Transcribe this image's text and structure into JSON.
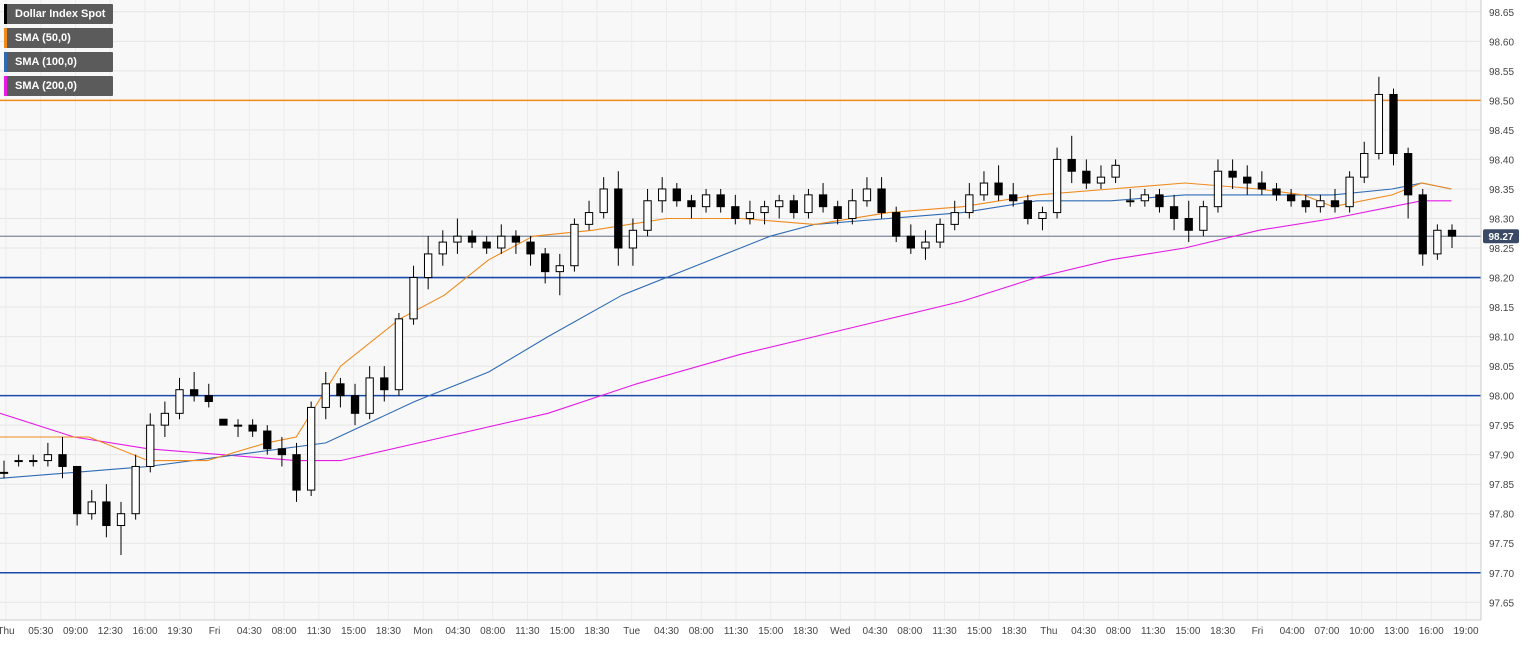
{
  "chart_data": {
    "type": "candlestick",
    "title": "Dollar Index Spot",
    "legend": [
      {
        "label": "Dollar Index Spot",
        "color": "#000000"
      },
      {
        "label": "SMA (50,0)",
        "color": "#ef8a1d"
      },
      {
        "label": "SMA (100,0)",
        "color": "#2f6bb3"
      },
      {
        "label": "SMA (200,0)",
        "color": "#e51be5"
      }
    ],
    "legend_position": "top-left",
    "grid": true,
    "ylim": [
      97.62,
      98.67
    ],
    "y_ticks": [
      "98.65",
      "98.60",
      "98.55",
      "98.50",
      "98.45",
      "98.40",
      "98.35",
      "98.30",
      "98.25",
      "98.20",
      "98.15",
      "98.10",
      "98.05",
      "98.00",
      "97.95",
      "97.90",
      "97.85",
      "97.80",
      "97.75",
      "97.70",
      "97.65"
    ],
    "x_ticks": [
      "Thu",
      "05:30",
      "09:00",
      "12:30",
      "16:00",
      "19:30",
      "Fri",
      "04:30",
      "08:00",
      "11:30",
      "15:00",
      "18:30",
      "Mon",
      "04:30",
      "08:00",
      "11:30",
      "15:00",
      "18:30",
      "Tue",
      "04:30",
      "08:00",
      "11:30",
      "15:00",
      "18:30",
      "Wed",
      "04:30",
      "08:00",
      "11:30",
      "15:00",
      "18:30",
      "Thu",
      "04:30",
      "08:00",
      "11:30",
      "15:00",
      "18:30",
      "Fri",
      "04:00",
      "07:00",
      "10:00",
      "13:00",
      "16:00",
      "19:00"
    ],
    "horizontal_levels": [
      {
        "value": 98.5,
        "color": "#ef8a1d"
      },
      {
        "value": 98.2,
        "color": "#1a4aa8"
      },
      {
        "value": 98.0,
        "color": "#1a4aa8"
      },
      {
        "value": 97.7,
        "color": "#1a4aa8"
      }
    ],
    "last_price": {
      "label": "98.27",
      "value": 98.27
    },
    "sma_50": [
      [
        0,
        97.93
      ],
      [
        0.06,
        97.93
      ],
      [
        0.1,
        97.89
      ],
      [
        0.14,
        97.89
      ],
      [
        0.18,
        97.92
      ],
      [
        0.2,
        97.93
      ],
      [
        0.23,
        98.05
      ],
      [
        0.27,
        98.13
      ],
      [
        0.3,
        98.17
      ],
      [
        0.33,
        98.23
      ],
      [
        0.36,
        98.27
      ],
      [
        0.4,
        98.28
      ],
      [
        0.45,
        98.3
      ],
      [
        0.5,
        98.3
      ],
      [
        0.55,
        98.29
      ],
      [
        0.6,
        98.31
      ],
      [
        0.65,
        98.32
      ],
      [
        0.7,
        98.34
      ],
      [
        0.75,
        98.35
      ],
      [
        0.8,
        98.36
      ],
      [
        0.85,
        98.35
      ],
      [
        0.88,
        98.34
      ],
      [
        0.9,
        98.32
      ],
      [
        0.94,
        98.34
      ],
      [
        0.96,
        98.36
      ],
      [
        0.98,
        98.35
      ]
    ],
    "sma_100": [
      [
        0,
        97.86
      ],
      [
        0.05,
        97.87
      ],
      [
        0.1,
        97.88
      ],
      [
        0.16,
        97.9
      ],
      [
        0.22,
        97.92
      ],
      [
        0.28,
        97.99
      ],
      [
        0.33,
        98.04
      ],
      [
        0.37,
        98.1
      ],
      [
        0.42,
        98.17
      ],
      [
        0.47,
        98.22
      ],
      [
        0.52,
        98.27
      ],
      [
        0.55,
        98.29
      ],
      [
        0.6,
        98.3
      ],
      [
        0.65,
        98.31
      ],
      [
        0.7,
        98.33
      ],
      [
        0.75,
        98.33
      ],
      [
        0.8,
        98.34
      ],
      [
        0.85,
        98.34
      ],
      [
        0.88,
        98.34
      ],
      [
        0.9,
        98.34
      ],
      [
        0.94,
        98.35
      ],
      [
        0.96,
        98.36
      ],
      [
        0.98,
        98.35
      ]
    ],
    "sma_200": [
      [
        0,
        97.97
      ],
      [
        0.05,
        97.93
      ],
      [
        0.1,
        97.91
      ],
      [
        0.15,
        97.9
      ],
      [
        0.2,
        97.89
      ],
      [
        0.23,
        97.89
      ],
      [
        0.3,
        97.93
      ],
      [
        0.37,
        97.97
      ],
      [
        0.43,
        98.02
      ],
      [
        0.5,
        98.07
      ],
      [
        0.55,
        98.1
      ],
      [
        0.6,
        98.13
      ],
      [
        0.65,
        98.16
      ],
      [
        0.7,
        98.2
      ],
      [
        0.75,
        98.23
      ],
      [
        0.8,
        98.25
      ],
      [
        0.85,
        98.28
      ],
      [
        0.9,
        98.3
      ],
      [
        0.94,
        98.32
      ],
      [
        0.96,
        98.33
      ],
      [
        0.98,
        98.33
      ]
    ],
    "candles": [
      [
        97.87,
        97.89,
        97.86,
        97.87
      ],
      [
        97.89,
        97.9,
        97.88,
        97.89
      ],
      [
        97.89,
        97.9,
        97.88,
        97.89
      ],
      [
        97.89,
        97.92,
        97.88,
        97.9
      ],
      [
        97.9,
        97.93,
        97.86,
        97.88
      ],
      [
        97.88,
        97.88,
        97.78,
        97.8
      ],
      [
        97.8,
        97.84,
        97.79,
        97.82
      ],
      [
        97.82,
        97.85,
        97.76,
        97.78
      ],
      [
        97.78,
        97.82,
        97.73,
        97.8
      ],
      [
        97.8,
        97.9,
        97.79,
        97.88
      ],
      [
        97.88,
        97.97,
        97.87,
        97.95
      ],
      [
        97.95,
        97.99,
        97.93,
        97.97
      ],
      [
        97.97,
        98.03,
        97.96,
        98.01
      ],
      [
        98.01,
        98.04,
        97.99,
        98.0
      ],
      [
        98.0,
        98.02,
        97.98,
        97.99
      ],
      [
        97.96,
        97.96,
        97.95,
        97.95
      ],
      [
        97.95,
        97.96,
        97.93,
        97.95
      ],
      [
        97.95,
        97.96,
        97.93,
        97.94
      ],
      [
        97.94,
        97.95,
        97.9,
        97.91
      ],
      [
        97.91,
        97.93,
        97.88,
        97.9
      ],
      [
        97.9,
        97.92,
        97.82,
        97.84
      ],
      [
        97.84,
        97.99,
        97.83,
        97.98
      ],
      [
        97.98,
        98.04,
        97.96,
        98.02
      ],
      [
        98.02,
        98.03,
        97.98,
        98.0
      ],
      [
        98.0,
        98.02,
        97.95,
        97.97
      ],
      [
        97.97,
        98.05,
        97.96,
        98.03
      ],
      [
        98.03,
        98.05,
        97.99,
        98.01
      ],
      [
        98.01,
        98.14,
        98.0,
        98.13
      ],
      [
        98.13,
        98.22,
        98.12,
        98.2
      ],
      [
        98.2,
        98.27,
        98.18,
        98.24
      ],
      [
        98.24,
        98.28,
        98.22,
        98.26
      ],
      [
        98.26,
        98.3,
        98.24,
        98.27
      ],
      [
        98.27,
        98.28,
        98.25,
        98.26
      ],
      [
        98.26,
        98.27,
        98.24,
        98.25
      ],
      [
        98.25,
        98.29,
        98.24,
        98.27
      ],
      [
        98.27,
        98.28,
        98.24,
        98.26
      ],
      [
        98.26,
        98.27,
        98.22,
        98.24
      ],
      [
        98.24,
        98.25,
        98.19,
        98.21
      ],
      [
        98.21,
        98.24,
        98.17,
        98.22
      ],
      [
        98.22,
        98.3,
        98.21,
        98.29
      ],
      [
        98.29,
        98.33,
        98.28,
        98.31
      ],
      [
        98.31,
        98.37,
        98.3,
        98.35
      ],
      [
        98.35,
        98.38,
        98.22,
        98.25
      ],
      [
        98.25,
        98.3,
        98.22,
        98.28
      ],
      [
        98.28,
        98.35,
        98.27,
        98.33
      ],
      [
        98.33,
        98.37,
        98.31,
        98.35
      ],
      [
        98.35,
        98.36,
        98.32,
        98.33
      ],
      [
        98.33,
        98.34,
        98.3,
        98.32
      ],
      [
        98.32,
        98.35,
        98.31,
        98.34
      ],
      [
        98.34,
        98.35,
        98.31,
        98.32
      ],
      [
        98.32,
        98.34,
        98.29,
        98.3
      ],
      [
        98.3,
        98.33,
        98.29,
        98.31
      ],
      [
        98.31,
        98.33,
        98.29,
        98.32
      ],
      [
        98.32,
        98.34,
        98.3,
        98.33
      ],
      [
        98.33,
        98.34,
        98.3,
        98.31
      ],
      [
        98.31,
        98.35,
        98.3,
        98.34
      ],
      [
        98.34,
        98.36,
        98.31,
        98.32
      ],
      [
        98.32,
        98.33,
        98.29,
        98.3
      ],
      [
        98.3,
        98.35,
        98.29,
        98.33
      ],
      [
        98.33,
        98.37,
        98.32,
        98.35
      ],
      [
        98.35,
        98.37,
        98.3,
        98.31
      ],
      [
        98.31,
        98.32,
        98.26,
        98.27
      ],
      [
        98.27,
        98.29,
        98.24,
        98.25
      ],
      [
        98.25,
        98.28,
        98.23,
        98.26
      ],
      [
        98.26,
        98.3,
        98.25,
        98.29
      ],
      [
        98.29,
        98.33,
        98.28,
        98.31
      ],
      [
        98.31,
        98.36,
        98.3,
        98.34
      ],
      [
        98.34,
        98.38,
        98.33,
        98.36
      ],
      [
        98.36,
        98.39,
        98.33,
        98.34
      ],
      [
        98.34,
        98.36,
        98.32,
        98.33
      ],
      [
        98.33,
        98.34,
        98.29,
        98.3
      ],
      [
        98.3,
        98.32,
        98.28,
        98.31
      ],
      [
        98.31,
        98.42,
        98.3,
        98.4
      ],
      [
        98.4,
        98.44,
        98.36,
        98.38
      ],
      [
        98.38,
        98.4,
        98.35,
        98.36
      ],
      [
        98.36,
        98.39,
        98.35,
        98.37
      ],
      [
        98.37,
        98.4,
        98.36,
        98.39
      ],
      [
        98.33,
        98.35,
        98.32,
        98.33
      ],
      [
        98.33,
        98.35,
        98.32,
        98.34
      ],
      [
        98.34,
        98.35,
        98.31,
        98.32
      ],
      [
        98.32,
        98.34,
        98.28,
        98.3
      ],
      [
        98.3,
        98.33,
        98.26,
        98.28
      ],
      [
        98.28,
        98.33,
        98.27,
        98.32
      ],
      [
        98.32,
        98.4,
        98.31,
        98.38
      ],
      [
        98.38,
        98.4,
        98.35,
        98.37
      ],
      [
        98.37,
        98.39,
        98.34,
        98.36
      ],
      [
        98.36,
        98.38,
        98.34,
        98.35
      ],
      [
        98.35,
        98.36,
        98.33,
        98.34
      ],
      [
        98.34,
        98.35,
        98.32,
        98.33
      ],
      [
        98.33,
        98.34,
        98.31,
        98.32
      ],
      [
        98.32,
        98.34,
        98.31,
        98.33
      ],
      [
        98.33,
        98.35,
        98.31,
        98.32
      ],
      [
        98.32,
        98.38,
        98.31,
        98.37
      ],
      [
        98.37,
        98.43,
        98.36,
        98.41
      ],
      [
        98.41,
        98.54,
        98.4,
        98.51
      ],
      [
        98.51,
        98.52,
        98.39,
        98.41
      ],
      [
        98.41,
        98.42,
        98.3,
        98.34
      ],
      [
        98.34,
        98.35,
        98.22,
        98.24
      ],
      [
        98.24,
        98.29,
        98.23,
        98.28
      ],
      [
        98.28,
        98.29,
        98.25,
        98.27
      ]
    ]
  }
}
